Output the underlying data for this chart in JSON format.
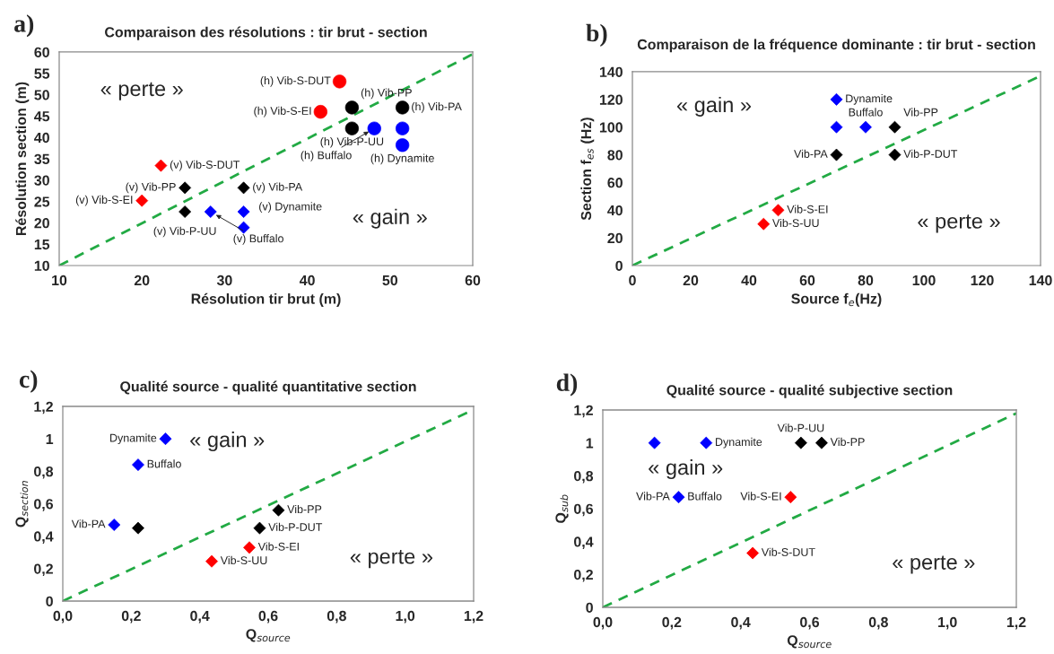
{
  "chart_data": [
    {
      "type": "scatter",
      "title": "Comparaison des résolutions : tir brut - section",
      "xlabel": "Résolution tir brut (m)",
      "ylabel": "Résolution section (m)",
      "xlim": [
        10,
        60
      ],
      "ylim": [
        10,
        60
      ],
      "xticks": [
        10,
        20,
        30,
        40,
        50,
        60
      ],
      "yticks": [
        10,
        15,
        20,
        25,
        30,
        35,
        40,
        45,
        50,
        55,
        60
      ],
      "grid": false,
      "legend": false,
      "series": [
        {
          "type": "scatter",
          "marker": "diamond",
          "color": "#ff0000",
          "x": [
            22.3,
            20
          ],
          "values": [
            33.4,
            25.2
          ]
        },
        {
          "type": "scatter",
          "marker": "diamond",
          "color": "#000000",
          "x": [
            25.2,
            25.2,
            32.3
          ],
          "values": [
            28.2,
            22.6,
            28.2
          ]
        },
        {
          "type": "scatter",
          "marker": "diamond",
          "color": "#0000ff",
          "x": [
            28.3,
            32.3,
            32.3
          ],
          "values": [
            22.6,
            22.6,
            18.9
          ]
        },
        {
          "type": "scatter",
          "marker": "circle",
          "color": "#ff0000",
          "x": [
            43.9,
            41.6
          ],
          "values": [
            53.1,
            46.0
          ]
        },
        {
          "type": "scatter",
          "marker": "circle",
          "color": "#000000",
          "x": [
            45.4,
            45.4,
            51.5
          ],
          "values": [
            47.0,
            42.1,
            47.0
          ]
        },
        {
          "type": "scatter",
          "marker": "circle",
          "color": "#0000ff",
          "x": [
            48.1,
            51.5,
            51.5
          ],
          "values": [
            42.1,
            42.1,
            38.2
          ]
        },
        {
          "type": "line",
          "line_style": "dashed",
          "color": "#22aa44",
          "x": [
            10,
            60
          ],
          "values": [
            10,
            59.5
          ]
        }
      ],
      "annotations": [
        "a)",
        "« perte »",
        "« gain »",
        {
          "text": "(v) Vib-S-DUT",
          "x": 22.3,
          "y": 33.4
        },
        {
          "text": "(v) Vib-S-EI",
          "x": 20,
          "y": 25.2
        },
        {
          "text": "(v) Vib-PP",
          "x": 25.2,
          "y": 28.2
        },
        {
          "text": "(v) Vib-P-UU",
          "x": 25.2,
          "y": 22.6
        },
        {
          "text": "(v) Vib-PA",
          "x": 32.3,
          "y": 28.2
        },
        {
          "text": "(v) Buffalo",
          "x": 28.3,
          "y": 22.6
        },
        {
          "text": "(v) Dynamite",
          "x": 32.3,
          "y": 18.9
        },
        {
          "text": "(h) Vib-S-DUT",
          "x": 43.9,
          "y": 53.1
        },
        {
          "text": "(h) Vib-S-EI",
          "x": 41.6,
          "y": 46.0
        },
        {
          "text": "(h) Vib-PP",
          "x": 45.4,
          "y": 47.0
        },
        {
          "text": "(h) Vib-P-UU",
          "x": 45.4,
          "y": 42.1
        },
        {
          "text": "(h) Vib-PA",
          "x": 51.5,
          "y": 47.0
        },
        {
          "text": "(h) Buffalo",
          "x": 48.1,
          "y": 42.1
        },
        {
          "text": "(h) Dynamite",
          "x": 51.5,
          "y": 38.2
        }
      ]
    },
    {
      "type": "scatter",
      "title": "Comparaison de la fréquence dominante : tir brut - section",
      "xlabel": "Source f$_{e}$(Hz)",
      "ylabel": "Section f$_{es}$ (Hz)",
      "xlim": [
        0,
        140
      ],
      "ylim": [
        0,
        140
      ],
      "xticks": [
        0,
        20,
        40,
        60,
        80,
        100,
        120,
        140
      ],
      "yticks": [
        0,
        20,
        40,
        60,
        80,
        100,
        120,
        140
      ],
      "grid": false,
      "legend": false,
      "series": [
        {
          "type": "scatter",
          "marker": "diamond",
          "color": "#0000ff",
          "x": [
            70,
            70,
            80
          ],
          "values": [
            120,
            100,
            100
          ]
        },
        {
          "type": "scatter",
          "marker": "diamond",
          "color": "#000000",
          "x": [
            90,
            70,
            90
          ],
          "values": [
            100,
            80,
            80
          ]
        },
        {
          "type": "scatter",
          "marker": "diamond",
          "color": "#ff0000",
          "x": [
            50,
            45
          ],
          "values": [
            40,
            30
          ]
        },
        {
          "type": "line",
          "line_style": "dashed",
          "color": "#22aa44",
          "x": [
            0,
            140
          ],
          "values": [
            0,
            137
          ]
        }
      ],
      "annotations": [
        "b)",
        "« gain »",
        "« perte »",
        {
          "text": "Dynamite",
          "x": 70,
          "y": 120
        },
        {
          "text": "Buffalo",
          "x": 80,
          "y": 100
        },
        {
          "text": "Vib-PP",
          "x": 90,
          "y": 100
        },
        {
          "text": "Vib-PA",
          "x": 70,
          "y": 80
        },
        {
          "text": "Vib-P-DUT",
          "x": 90,
          "y": 80
        },
        {
          "text": "Vib-S-EI",
          "x": 50,
          "y": 40
        },
        {
          "text": "Vib-S-UU",
          "x": 45,
          "y": 30
        }
      ]
    },
    {
      "type": "scatter",
      "title": "Qualité source - qualité quantitative section",
      "xlabel": "Q$_{source}$",
      "ylabel": "Q$_{section}$",
      "xlim": [
        0,
        1.2
      ],
      "ylim": [
        0,
        1.2
      ],
      "xticks": [
        {
          "value": 0,
          "label": "0,0"
        },
        {
          "value": 0.2,
          "label": "0,2"
        },
        {
          "value": 0.4,
          "label": "0,4"
        },
        {
          "value": 0.6,
          "label": "0,6"
        },
        {
          "value": 0.8,
          "label": "0,8"
        },
        {
          "value": 1,
          "label": "1,0"
        },
        {
          "value": 1.2,
          "label": "1,2"
        }
      ],
      "yticks": [
        0,
        {
          "value": 0.2,
          "label": "0,2"
        },
        {
          "value": 0.4,
          "label": "0,4"
        },
        {
          "value": 0.6,
          "label": "0,6"
        },
        {
          "value": 0.8,
          "label": "0,8"
        },
        1,
        {
          "value": 1.2,
          "label": "1,2"
        }
      ],
      "grid": false,
      "legend": false,
      "series": [
        {
          "type": "scatter",
          "marker": "diamond",
          "color": "#0000ff",
          "x": [
            0.3,
            0.22,
            0.15
          ],
          "values": [
            1.0,
            0.84,
            0.47
          ]
        },
        {
          "type": "scatter",
          "marker": "diamond",
          "color": "#000000",
          "x": [
            0.22,
            0.63,
            0.575
          ],
          "values": [
            0.45,
            0.56,
            0.45
          ]
        },
        {
          "type": "scatter",
          "marker": "diamond",
          "color": "#ff0000",
          "x": [
            0.545,
            0.435
          ],
          "values": [
            0.33,
            0.245
          ]
        },
        {
          "type": "line",
          "line_style": "dashed",
          "color": "#22aa44",
          "x": [
            0,
            1.2
          ],
          "values": [
            0,
            1.18
          ]
        }
      ],
      "annotations": [
        "c)",
        "« gain »",
        "« perte »",
        {
          "text": "Dynamite",
          "x": 0.3,
          "y": 1.0
        },
        {
          "text": "Buffalo",
          "x": 0.22,
          "y": 0.84
        },
        {
          "text": "Vib-PA",
          "x": 0.15,
          "y": 0.47
        },
        {
          "text": "Vib-PP",
          "x": 0.63,
          "y": 0.56
        },
        {
          "text": "Vib-P-DUT",
          "x": 0.575,
          "y": 0.45
        },
        {
          "text": "Vib-S-EI",
          "x": 0.545,
          "y": 0.33
        },
        {
          "text": "Vib-S-UU",
          "x": 0.435,
          "y": 0.245
        }
      ]
    },
    {
      "type": "scatter",
      "title": "Qualité source - qualité subjective section",
      "xlabel": "Q$_{source}$",
      "ylabel": "Q$_{sub}$",
      "xlim": [
        0,
        1.2
      ],
      "ylim": [
        0,
        1.2
      ],
      "xticks": [
        {
          "value": 0,
          "label": "0,0"
        },
        {
          "value": 0.2,
          "label": "0,2"
        },
        {
          "value": 0.4,
          "label": "0,4"
        },
        {
          "value": 0.6,
          "label": "0,6"
        },
        {
          "value": 0.8,
          "label": "0,8"
        },
        {
          "value": 1,
          "label": "1,0"
        },
        {
          "value": 1.2,
          "label": "1,2"
        }
      ],
      "yticks": [
        0,
        {
          "value": 0.2,
          "label": "0,2"
        },
        {
          "value": 0.4,
          "label": "0,4"
        },
        {
          "value": 0.6,
          "label": "0,6"
        },
        {
          "value": 0.8,
          "label": "0,8"
        },
        1,
        {
          "value": 1.2,
          "label": "1,2"
        }
      ],
      "grid": false,
      "legend": false,
      "series": [
        {
          "type": "scatter",
          "marker": "diamond",
          "color": "#0000ff",
          "x": [
            0.15,
            0.3,
            0.22
          ],
          "values": [
            1.0,
            1.0,
            0.67
          ]
        },
        {
          "type": "scatter",
          "marker": "diamond",
          "color": "#000000",
          "x": [
            0.575,
            0.635
          ],
          "values": [
            1.0,
            1.0
          ]
        },
        {
          "type": "scatter",
          "marker": "diamond",
          "color": "#ff0000",
          "x": [
            0.545,
            0.435
          ],
          "values": [
            0.67,
            0.33
          ]
        },
        {
          "type": "line",
          "line_style": "dashed",
          "color": "#22aa44",
          "x": [
            0,
            1.2
          ],
          "values": [
            0,
            1.18
          ]
        }
      ],
      "annotations": [
        "d)",
        "« gain »",
        "« perte »",
        {
          "text": "Dynamite",
          "x": 0.3,
          "y": 1.0
        },
        {
          "text": "Vib-PP",
          "x": 0.635,
          "y": 1.0
        },
        {
          "text": "Vib-P-UU",
          "x": 0.575,
          "y": 1.0
        },
        {
          "text": "Buffalo",
          "x": 0.22,
          "y": 0.67
        },
        {
          "text": "Vib-PA",
          "x": 0.22,
          "y": 0.67
        },
        {
          "text": "Vib-S-EI",
          "x": 0.545,
          "y": 0.67
        },
        {
          "text": "Vib-S-DUT",
          "x": 0.435,
          "y": 0.33
        }
      ]
    }
  ]
}
